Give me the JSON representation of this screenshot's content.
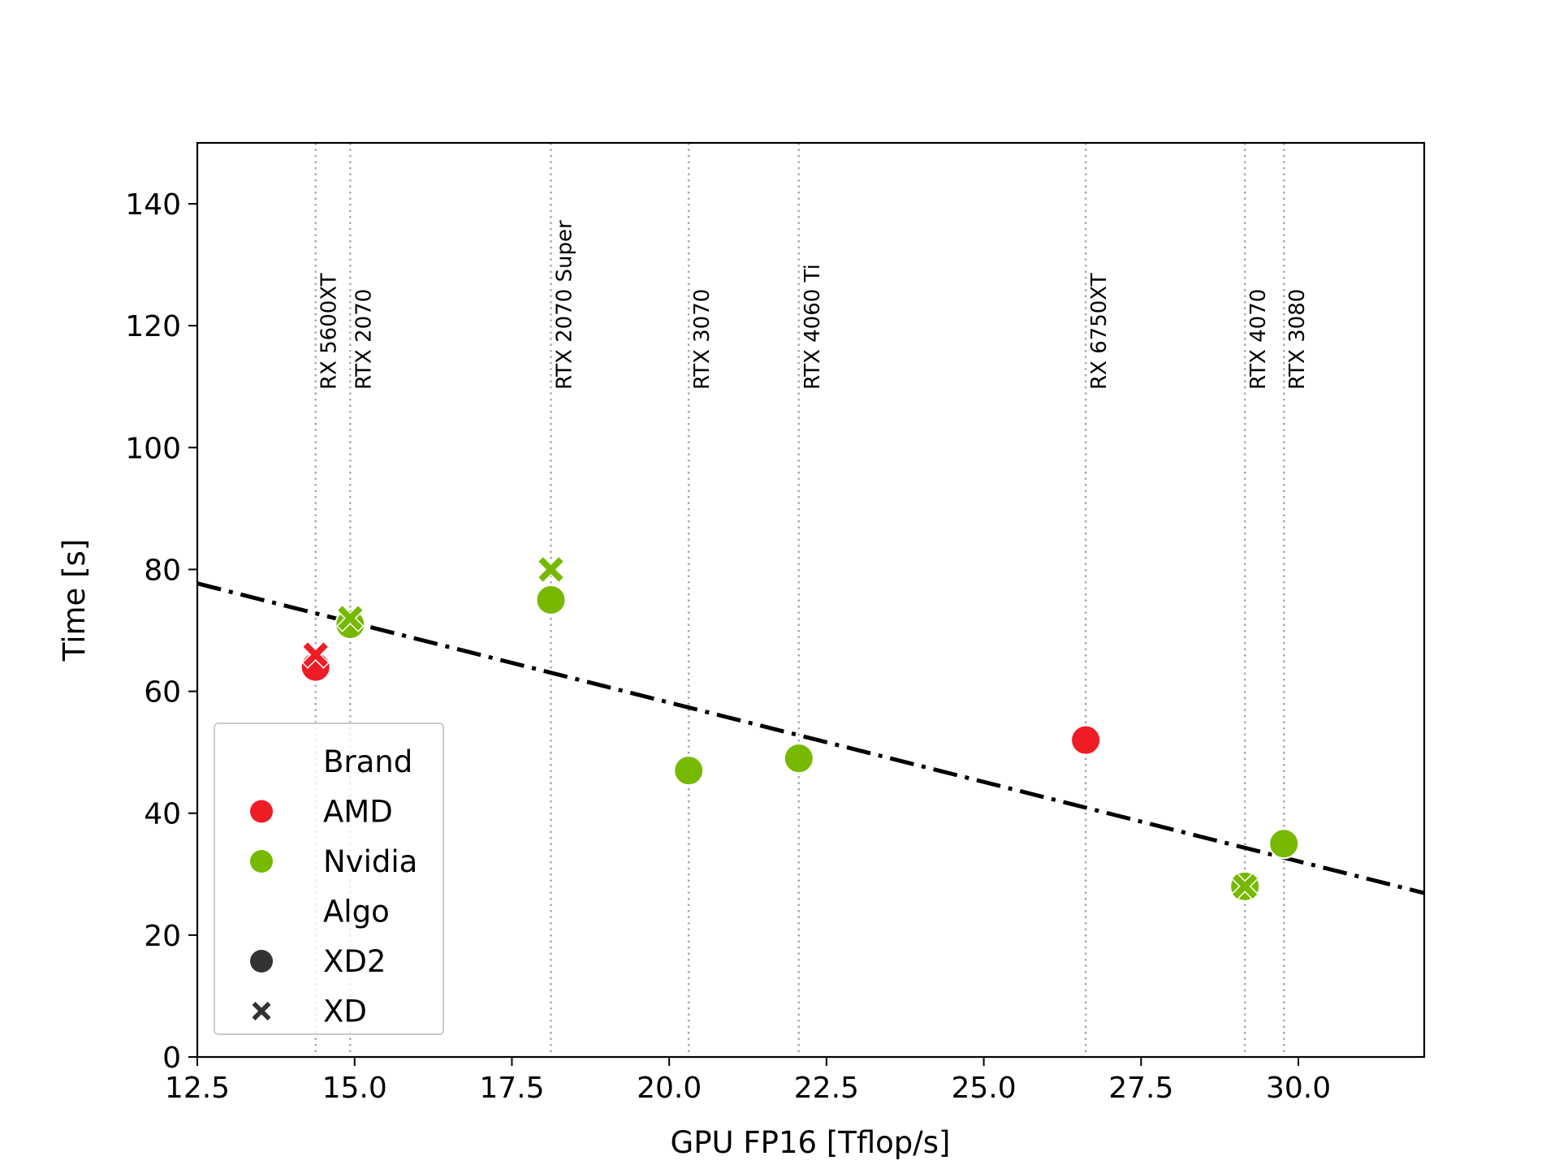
{
  "chart_data": {
    "type": "scatter",
    "xlabel": "GPU FP16 [Tflop/s]",
    "ylabel": "Time [s]",
    "xlim": [
      12.5,
      32.0
    ],
    "ylim": [
      0,
      150
    ],
    "xticks": [
      "12.5",
      "15.0",
      "17.5",
      "20.0",
      "22.5",
      "25.0",
      "27.5",
      "30.0"
    ],
    "yticks": [
      "0",
      "20",
      "40",
      "60",
      "80",
      "100",
      "120",
      "140"
    ],
    "grid": false,
    "colors": {
      "AMD": "#ee1c25",
      "Nvidia": "#76b900",
      "fit_line": "#000000",
      "gpu_line": "#aaaaaa"
    },
    "gpu_lines": [
      {
        "label": "RX 5600XT",
        "x": 14.38
      },
      {
        "label": "RTX 2070",
        "x": 14.93
      },
      {
        "label": "RTX 2070 Super",
        "x": 18.12
      },
      {
        "label": "RTX 3070",
        "x": 20.31
      },
      {
        "label": "RTX 4060 Ti",
        "x": 22.06
      },
      {
        "label": "RX 6750XT",
        "x": 26.62
      },
      {
        "label": "RTX 4070",
        "x": 29.15
      },
      {
        "label": "RTX 3080",
        "x": 29.77
      }
    ],
    "points": [
      {
        "gpu": "RX 5600XT",
        "brand": "AMD",
        "algo": "XD2",
        "x": 14.38,
        "y": 64
      },
      {
        "gpu": "RX 5600XT",
        "brand": "AMD",
        "algo": "XD",
        "x": 14.38,
        "y": 66
      },
      {
        "gpu": "RTX 2070",
        "brand": "Nvidia",
        "algo": "XD2",
        "x": 14.93,
        "y": 71
      },
      {
        "gpu": "RTX 2070",
        "brand": "Nvidia",
        "algo": "XD",
        "x": 14.93,
        "y": 72
      },
      {
        "gpu": "RTX 2070 Super",
        "brand": "Nvidia",
        "algo": "XD2",
        "x": 18.12,
        "y": 75
      },
      {
        "gpu": "RTX 2070 Super",
        "brand": "Nvidia",
        "algo": "XD",
        "x": 18.12,
        "y": 80
      },
      {
        "gpu": "RTX 3070",
        "brand": "Nvidia",
        "algo": "XD2",
        "x": 20.31,
        "y": 47
      },
      {
        "gpu": "RTX 4060 Ti",
        "brand": "Nvidia",
        "algo": "XD2",
        "x": 22.06,
        "y": 49
      },
      {
        "gpu": "RX 6750XT",
        "brand": "AMD",
        "algo": "XD2",
        "x": 26.62,
        "y": 52
      },
      {
        "gpu": "RTX 4070",
        "brand": "Nvidia",
        "algo": "XD2",
        "x": 29.15,
        "y": 28
      },
      {
        "gpu": "RTX 4070",
        "brand": "Nvidia",
        "algo": "XD",
        "x": 29.15,
        "y": 28
      },
      {
        "gpu": "RTX 3080",
        "brand": "Nvidia",
        "algo": "XD2",
        "x": 29.77,
        "y": 35
      }
    ],
    "fit_line": {
      "style": "dash-dot",
      "x": [
        12.5,
        32.0
      ],
      "y": [
        77.7,
        26.9
      ]
    },
    "legend": {
      "placement": "lower-left",
      "sections": [
        {
          "title": "Brand",
          "items": [
            {
              "label": "AMD",
              "kind": "brand"
            },
            {
              "label": "Nvidia",
              "kind": "brand"
            }
          ]
        },
        {
          "title": "Algo",
          "items": [
            {
              "label": "XD2",
              "kind": "algo"
            },
            {
              "label": "XD",
              "kind": "algo"
            }
          ]
        }
      ]
    }
  }
}
